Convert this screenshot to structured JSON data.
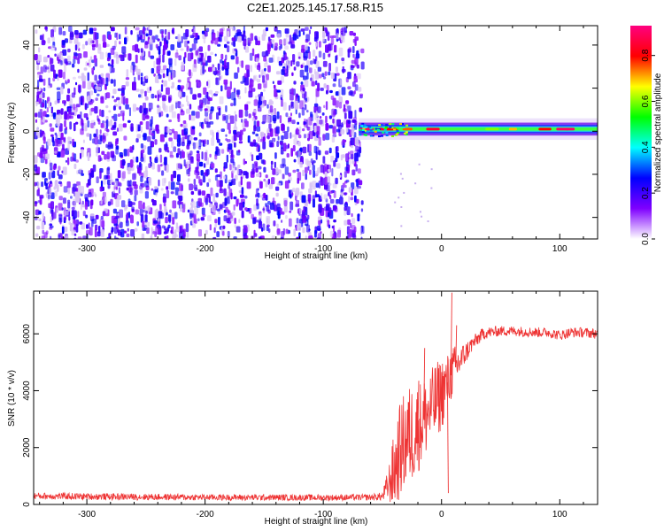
{
  "title": "C2E1.2025.145.17.58.R15",
  "chart_data": [
    {
      "type": "heatmap",
      "xlabel": "Height of straight line (km)",
      "ylabel": "Frequency (Hz)",
      "xlim": [
        -345,
        132
      ],
      "ylim": [
        -50,
        49
      ],
      "x_ticks": [
        -300,
        -200,
        -100,
        0,
        100
      ],
      "y_ticks": [
        -40,
        -20,
        0,
        20,
        40
      ],
      "noise_region_x": [
        -345,
        -68
      ],
      "signal_band": {
        "x_start": -70,
        "x_end": 132,
        "center_freq": 1,
        "half_width_hz": 3
      },
      "colorbar": {
        "label": "Normalized spectral amplitude",
        "ticks": [
          0.0,
          0.2,
          0.4,
          0.6,
          0.8
        ],
        "range": [
          0.0,
          0.93
        ],
        "colors": [
          "#ffffff",
          "#7f00ff",
          "#0000ff",
          "#00ffff",
          "#00ff00",
          "#ffff00",
          "#ff0000",
          "#ff0080"
        ]
      }
    },
    {
      "type": "line",
      "xlabel": "Height of straight line (km)",
      "ylabel": "SNR (10 * v/v)",
      "xlim": [
        -345,
        132
      ],
      "ylim": [
        0,
        7500
      ],
      "x_ticks": [
        -300,
        -200,
        -100,
        0,
        100
      ],
      "y_ticks": [
        0,
        2000,
        4000,
        6000
      ],
      "color": "#ee3333",
      "x": [
        -345,
        -300,
        -200,
        -100,
        -60,
        -50,
        -45,
        -40,
        -35,
        -30,
        -25,
        -20,
        -15,
        -10,
        -5,
        0,
        5,
        10,
        15,
        20,
        25,
        30,
        35,
        40,
        50,
        60,
        70,
        80,
        90,
        100,
        110,
        120,
        132
      ],
      "y": [
        300,
        280,
        250,
        240,
        250,
        280,
        700,
        1200,
        1900,
        2300,
        2500,
        2700,
        3000,
        3300,
        3600,
        3900,
        4300,
        4700,
        5000,
        5300,
        5600,
        5800,
        6000,
        6050,
        6100,
        6100,
        6080,
        6050,
        6050,
        5950,
        6050,
        6050,
        6000
      ],
      "noise_amplitude": [
        120,
        120,
        110,
        110,
        110,
        150,
        600,
        1400,
        1700,
        1800,
        1800,
        1600,
        1500,
        1400,
        1400,
        1300,
        1000,
        900,
        600,
        400,
        300,
        250,
        220,
        200,
        180,
        180,
        180,
        180,
        180,
        180,
        180,
        180,
        180
      ],
      "spikes": [
        [
          -20,
          4350
        ],
        [
          -15,
          5500
        ],
        [
          8,
          7450
        ],
        [
          12,
          6300
        ],
        [
          5,
          400
        ]
      ]
    }
  ]
}
